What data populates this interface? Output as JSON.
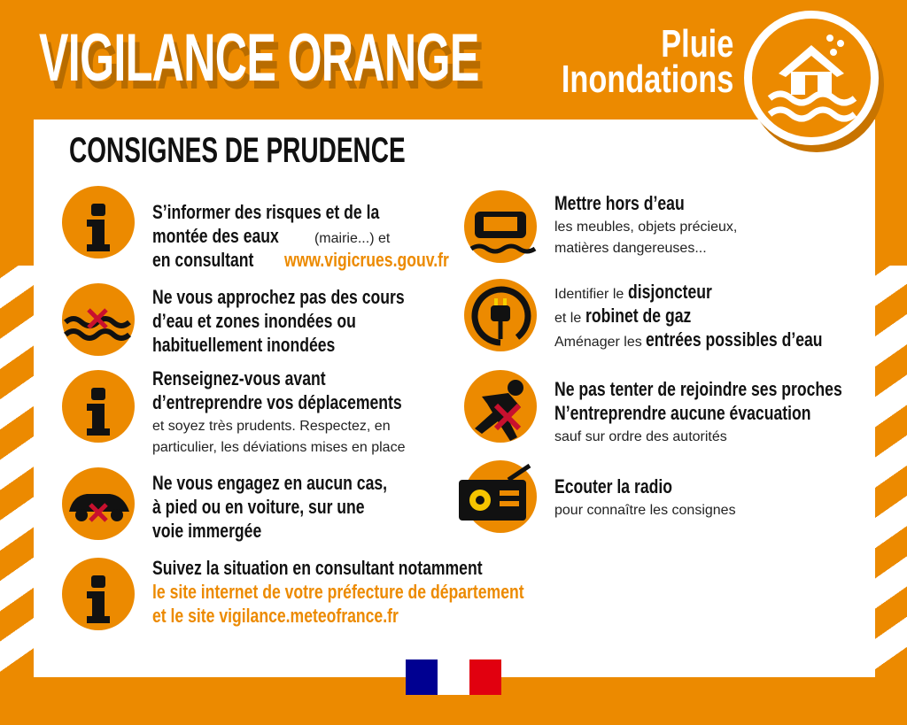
{
  "header": {
    "title": "VIGILANCE ORANGE",
    "hazard_line1": "Pluie",
    "hazard_line2": "Inondations",
    "hazard_icon": "flooded-house-icon"
  },
  "subtitle": "CONSIGNES DE PRUDENCE",
  "colors": {
    "orange": "#ec8a00",
    "dark_orange": "#b86c00",
    "black": "#111111",
    "red_cross": "#c8102e",
    "flag_blue": "#000091",
    "flag_red": "#e1000f"
  },
  "items": [
    {
      "icon": "info-icon",
      "lines": [
        [
          [
            "S’informer des risques et de la",
            "b"
          ]
        ],
        [
          [
            "montée des eaux",
            "b"
          ],
          [
            " (mairie...) et",
            "n"
          ]
        ],
        [
          [
            "en consultant ",
            "b"
          ],
          [
            "www.vigicrues.gouv.fr",
            "o"
          ]
        ]
      ]
    },
    {
      "icon": "no-water-approach-icon",
      "lines": [
        [
          [
            "Ne vous approchez pas des cours",
            "b"
          ]
        ],
        [
          [
            "d’eau et zones inondées ou",
            "b"
          ]
        ],
        [
          [
            "habituellement inondées",
            "b"
          ]
        ]
      ]
    },
    {
      "icon": "info-icon",
      "lines": [
        [
          [
            "Renseignez-vous avant",
            "b"
          ]
        ],
        [
          [
            "d’entreprendre vos déplacements",
            "b"
          ]
        ],
        [
          [
            "et soyez très prudents. Respectez, en",
            "n"
          ]
        ],
        [
          [
            "particulier, les déviations mises en place",
            "n"
          ]
        ]
      ]
    },
    {
      "icon": "no-car-icon",
      "lines": [
        [
          [
            "Ne vous engagez en aucun cas,",
            "b"
          ]
        ],
        [
          [
            "à pied ou en voiture, sur une",
            "b"
          ]
        ],
        [
          [
            "voie immergée",
            "b"
          ]
        ]
      ]
    },
    {
      "icon": "info-icon",
      "lines": [
        [
          [
            "Suivez la situation en consultant notamment",
            "b"
          ]
        ],
        [
          [
            "le site internet de votre préfecture de département",
            "o"
          ]
        ],
        [
          [
            "et le site vigilance.meteofrance.fr",
            "o"
          ]
        ]
      ]
    },
    {
      "icon": "sofa-icon",
      "lines": [
        [
          [
            "Mettre hors d’eau",
            "b"
          ]
        ],
        [
          [
            "les meubles, objets précieux,",
            "n"
          ]
        ],
        [
          [
            "matières dangereuses...",
            "n"
          ]
        ]
      ]
    },
    {
      "icon": "plug-icon",
      "lines": [
        [
          [
            "Identifier le ",
            "n"
          ],
          [
            "disjoncteur",
            "b"
          ]
        ],
        [
          [
            "et le ",
            "n"
          ],
          [
            "robinet de gaz",
            "b"
          ]
        ],
        [
          [
            "Aménager les ",
            "n"
          ],
          [
            "entrées possibles d’eau",
            "b"
          ]
        ]
      ]
    },
    {
      "icon": "no-running-icon",
      "lines": [
        [
          [
            "Ne pas tenter de rejoindre ses proches",
            "b"
          ]
        ],
        [
          [
            "N’entreprendre aucune évacuation",
            "b"
          ]
        ],
        [
          [
            "sauf sur ordre des autorités",
            "n"
          ]
        ]
      ]
    },
    {
      "icon": "radio-icon",
      "lines": [
        [
          [
            "Ecouter la radio",
            "b"
          ]
        ],
        [
          [
            "pour connaître les consignes",
            "n"
          ]
        ]
      ]
    }
  ],
  "footer": {
    "logo": "République Française Marianne logo"
  }
}
